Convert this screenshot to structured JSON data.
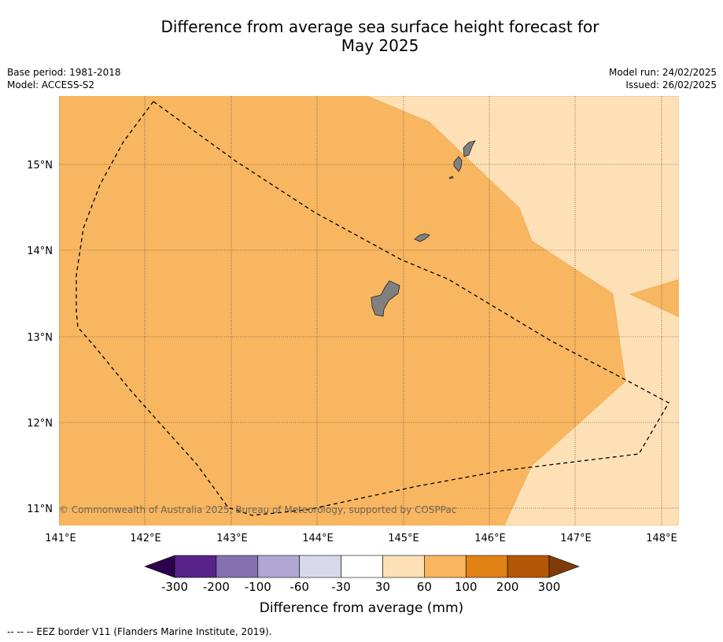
{
  "title_line1": "Difference from average sea surface height forecast for",
  "title_line2": "May 2025",
  "base_period": "Base period: 1981-2018",
  "model": "Model: ACCESS-S2",
  "model_run": "Model run: 24/02/2025",
  "issued": "Issued: 26/02/2025",
  "credit": "© Commonwealth of Australia 2025, Bureau of Meteorology, supported by COSPPac",
  "colorbar_label": "Difference from average (mm)",
  "footnote": "--  --  -- EEZ border V11 (Flanders Marine Institute, 2019).",
  "lon_labels": [
    "141°E",
    "142°E",
    "143°E",
    "144°E",
    "145°E",
    "146°E",
    "147°E",
    "148°E"
  ],
  "lat_labels": [
    "15°N",
    "14°N",
    "13°N",
    "12°N",
    "11°N"
  ],
  "colorbar": {
    "ticks": [
      "-300",
      "-200",
      "-100",
      "-60",
      "-30",
      "30",
      "60",
      "100",
      "200",
      "300"
    ],
    "colors": [
      "#57238a",
      "#8472b0",
      "#b0a8d3",
      "#d9d9ec",
      "#ffffff",
      "#fde0b5",
      "#f8b661",
      "#e08214",
      "#b35806"
    ],
    "under_color": "#2d004b",
    "over_color": "#7f3b08"
  },
  "colors": {
    "band_30_60": "#fde0b5",
    "band_60_100": "#f8b661",
    "land": "#808080"
  },
  "chart_data": {
    "type": "heatmap",
    "xlim": [
      141.0,
      148.2
    ],
    "ylim": [
      10.8,
      15.8
    ],
    "levels_mm": [
      -300,
      -200,
      -100,
      -60,
      -30,
      30,
      60,
      100,
      200,
      300
    ],
    "visible_classes": [
      "60 to 100 mm (west and central)",
      "30 to 60 mm (east and southeast)"
    ]
  }
}
